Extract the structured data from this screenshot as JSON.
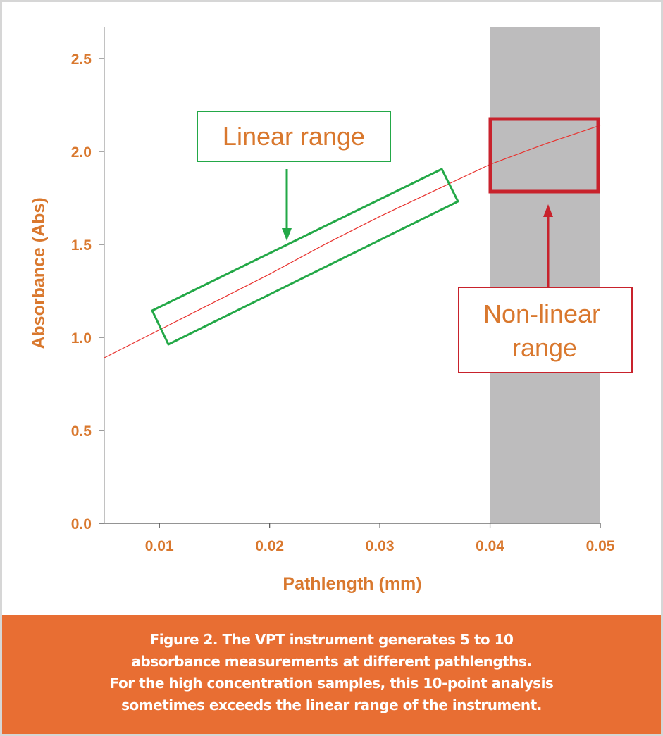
{
  "chart_data": {
    "type": "line",
    "xlabel": "Pathlength (mm)",
    "ylabel": "Absorbance (Abs)",
    "xlim": [
      0.005,
      0.05
    ],
    "ylim": [
      0,
      2.67
    ],
    "x_ticks": [
      "0.01",
      "0.02",
      "0.03",
      "0.04",
      "0.05"
    ],
    "y_ticks": [
      "0.0",
      "0.5",
      "1.0",
      "1.5",
      "2.0",
      "2.5"
    ],
    "grid": false,
    "series": [
      {
        "x": [
          0.005,
          0.01,
          0.02,
          0.025,
          0.03,
          0.04,
          0.045,
          0.05
        ],
        "y": [
          0.89,
          1.04,
          1.34,
          1.5,
          1.65,
          1.93,
          2.04,
          2.14
        ],
        "color": "#E8332F"
      }
    ],
    "shaded_region": {
      "x": [
        0.04,
        0.05
      ],
      "color": "#BDBCBD"
    },
    "annotations": {
      "linear": {
        "label": "Linear range",
        "color": "#23A847"
      },
      "nonlinear": {
        "label_line1": "Non-linear",
        "label_line2": "range",
        "color": "#C8222C"
      }
    }
  },
  "caption": {
    "lines": [
      "Figure 2. The VPT instrument generates 5 to 10",
      "absorbance measurements at different pathlengths.",
      "For the high concentration samples, this 10-point analysis",
      "sometimes exceeds the linear range of the instrument."
    ],
    "background": "#E86E33"
  }
}
